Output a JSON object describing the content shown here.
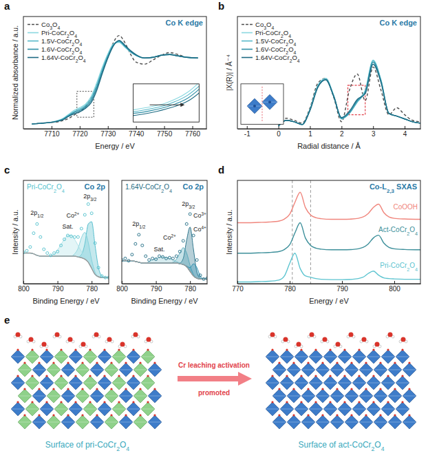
{
  "chart_data": [
    {
      "panel": "a",
      "type": "line",
      "annotation": "Co K edge",
      "x_label": "Energy / eV",
      "y_label": "Normalized absorbance / a.u.",
      "x": [
        7703,
        7706,
        7709,
        7712,
        7714,
        7716,
        7718,
        7720,
        7722,
        7724,
        7726,
        7728,
        7730,
        7732,
        7734,
        7736,
        7738,
        7740,
        7743,
        7746,
        7749,
        7752,
        7755,
        7758,
        7762
      ],
      "xlim": [
        7700,
        7765
      ],
      "xticks": [
        7710,
        7720,
        7730,
        7740,
        7750,
        7760
      ],
      "ylim": [
        -0.05,
        1.6
      ],
      "tick_labels": "x",
      "legend": "upper left",
      "inset": {
        "xlim": [
          7719,
          7725
        ],
        "ylim": [
          0.12,
          0.5
        ]
      },
      "series": [
        {
          "name": "Co3O4",
          "color": "#4d4d4d",
          "line_style": "dashed",
          "values": [
            0.02,
            0.03,
            0.04,
            0.05,
            0.07,
            0.1,
            0.15,
            0.2,
            0.28,
            0.4,
            0.58,
            0.8,
            1.0,
            1.22,
            1.32,
            1.22,
            1.05,
            0.93,
            0.9,
            0.96,
            1.03,
            1.07,
            1.04,
            1.0,
            0.99
          ]
        },
        {
          "name": "Pri-CoCr2O4",
          "color": "#8ad8e0",
          "line_style": "solid",
          "values": [
            0.02,
            0.03,
            0.04,
            0.07,
            0.1,
            0.16,
            0.22,
            0.26,
            0.31,
            0.42,
            0.62,
            0.85,
            1.05,
            1.2,
            1.22,
            1.15,
            1.08,
            1.03,
            0.99,
            1.0,
            1.03,
            1.04,
            1.02,
            1.0,
            0.99
          ]
        },
        {
          "name": "1.5V-CoCr2O4",
          "color": "#56b7c8",
          "line_style": "solid",
          "values": [
            0.02,
            0.03,
            0.04,
            0.06,
            0.09,
            0.15,
            0.2,
            0.24,
            0.29,
            0.39,
            0.58,
            0.82,
            1.03,
            1.19,
            1.23,
            1.16,
            1.08,
            1.03,
            0.99,
            1.0,
            1.03,
            1.04,
            1.02,
            1.0,
            0.99
          ]
        },
        {
          "name": "1.6V-CoCr2O4",
          "color": "#2f8fa6",
          "line_style": "solid",
          "values": [
            0.02,
            0.03,
            0.04,
            0.06,
            0.09,
            0.14,
            0.19,
            0.22,
            0.27,
            0.36,
            0.55,
            0.79,
            1.01,
            1.18,
            1.24,
            1.17,
            1.09,
            1.03,
            0.99,
            1.0,
            1.03,
            1.04,
            1.02,
            1.0,
            0.99
          ]
        },
        {
          "name": "1.64V-CoCr2O4",
          "color": "#1d6a82",
          "line_style": "solid",
          "values": [
            0.02,
            0.03,
            0.04,
            0.06,
            0.08,
            0.13,
            0.17,
            0.2,
            0.25,
            0.33,
            0.51,
            0.76,
            0.99,
            1.17,
            1.25,
            1.18,
            1.1,
            1.04,
            0.99,
            1.0,
            1.03,
            1.04,
            1.02,
            1.0,
            0.99
          ]
        }
      ]
    },
    {
      "panel": "b",
      "type": "line",
      "annotation": "Co K edge",
      "x_label": "Radial distance / Å",
      "y_label": "|X(R)| / Å⁻⁴",
      "x": [
        0,
        0.25,
        0.5,
        0.75,
        1,
        1.25,
        1.5,
        1.75,
        2,
        2.25,
        2.5,
        2.75,
        3,
        3.25,
        3.5,
        3.75,
        4,
        4.25,
        4.5
      ],
      "xlim": [
        -1.3,
        4.5
      ],
      "xticks": [
        -1,
        0,
        1,
        2,
        3,
        4
      ],
      "ylim": [
        0,
        1.6
      ],
      "tick_labels": "x",
      "legend": "upper left",
      "highlight": {
        "xlim": [
          2.2,
          2.75
        ],
        "ylim": [
          0.2,
          0.62
        ]
      },
      "series": [
        {
          "name": "Co3O4",
          "color": "#4d4d4d",
          "line_style": "dashed",
          "values": [
            0.05,
            0.15,
            0.12,
            0.08,
            0.3,
            0.65,
            0.72,
            0.45,
            0.1,
            0.55,
            0.78,
            0.4,
            0.88,
            0.55,
            0.2,
            0.3,
            0.2,
            0.12,
            0.1
          ]
        },
        {
          "name": "Pri-CoCr2O4",
          "color": "#8ad8e0",
          "line_style": "solid",
          "values": [
            0.04,
            0.12,
            0.1,
            0.06,
            0.28,
            0.62,
            0.72,
            0.48,
            0.15,
            0.22,
            0.4,
            0.55,
            0.98,
            0.7,
            0.22,
            0.18,
            0.14,
            0.1,
            0.08
          ]
        },
        {
          "name": "1.5V-CoCr2O4",
          "color": "#56b7c8",
          "line_style": "solid",
          "values": [
            0.04,
            0.12,
            0.1,
            0.06,
            0.27,
            0.61,
            0.71,
            0.47,
            0.14,
            0.22,
            0.38,
            0.53,
            0.97,
            0.69,
            0.22,
            0.18,
            0.14,
            0.1,
            0.08
          ]
        },
        {
          "name": "1.6V-CoCr2O4",
          "color": "#2f8fa6",
          "line_style": "solid",
          "values": [
            0.04,
            0.12,
            0.1,
            0.06,
            0.27,
            0.6,
            0.7,
            0.47,
            0.15,
            0.23,
            0.4,
            0.52,
            0.95,
            0.68,
            0.22,
            0.18,
            0.14,
            0.1,
            0.08
          ]
        },
        {
          "name": "1.64V-CoCr2O4",
          "color": "#1d6a82",
          "line_style": "solid",
          "values": [
            0.04,
            0.12,
            0.1,
            0.06,
            0.26,
            0.59,
            0.7,
            0.46,
            0.16,
            0.25,
            0.42,
            0.5,
            0.92,
            0.66,
            0.22,
            0.18,
            0.14,
            0.1,
            0.08
          ]
        }
      ]
    },
    {
      "panel": "c",
      "type": "line",
      "title": "Pri-CoCr2O4",
      "annotation": "Co 2p",
      "x_label": "Binding Energy / eV",
      "y_label": "Intensity / a.u.",
      "x": [
        800,
        799,
        798,
        797,
        796,
        795,
        794,
        793,
        792,
        791,
        790,
        789,
        788,
        787,
        786,
        785,
        784,
        783,
        782,
        781,
        780,
        779,
        778,
        777,
        776,
        775
      ],
      "xlim": [
        800,
        775
      ],
      "xticks": [
        800,
        790,
        780
      ],
      "ylim": [
        0,
        1.35
      ],
      "tick_labels": "x",
      "annotations": [
        "2p1/2",
        "Sat.",
        "2p3/2",
        "Co2+"
      ],
      "series": [
        {
          "type": "scatter",
          "marker": "circle-open",
          "color": "#4fbfcc",
          "values": [
            0.41,
            0.43,
            0.48,
            0.66,
            0.78,
            0.61,
            0.45,
            0.4,
            0.37,
            0.4,
            0.42,
            0.5,
            0.58,
            0.63,
            0.62,
            0.61,
            0.61,
            0.72,
            0.9,
            1.04,
            0.92,
            0.53,
            0.21,
            0.1,
            0.08,
            0.08
          ]
        },
        {
          "type": "line",
          "color": "#9a9a9a",
          "values": [
            0.4,
            0.4,
            0.4,
            0.39,
            0.37,
            0.36,
            0.36,
            0.36,
            0.36,
            0.36,
            0.36,
            0.36,
            0.36,
            0.36,
            0.36,
            0.36,
            0.35,
            0.34,
            0.32,
            0.28,
            0.2,
            0.12,
            0.09,
            0.08,
            0.08,
            0.08
          ]
        },
        {
          "type": "area",
          "color": "#46b8c8",
          "values": [
            0.4,
            0.4,
            0.4,
            0.39,
            0.37,
            0.36,
            0.36,
            0.36,
            0.36,
            0.36,
            0.36,
            0.36,
            0.36,
            0.36,
            0.36,
            0.36,
            0.35,
            0.38,
            0.52,
            0.78,
            0.81,
            0.5,
            0.21,
            0.1,
            0.08,
            0.08
          ]
        },
        {
          "type": "area",
          "color": "#7fcfda",
          "values": [
            0.4,
            0.4,
            0.4,
            0.39,
            0.37,
            0.36,
            0.36,
            0.36,
            0.36,
            0.36,
            0.36,
            0.36,
            0.36,
            0.36,
            0.36,
            0.39,
            0.46,
            0.6,
            0.67,
            0.54,
            0.31,
            0.15,
            0.09,
            0.08,
            0.08,
            0.08
          ]
        },
        {
          "type": "area",
          "color": "#a9dfe6",
          "values": [
            0.4,
            0.4,
            0.4,
            0.39,
            0.37,
            0.36,
            0.36,
            0.36,
            0.37,
            0.39,
            0.44,
            0.51,
            0.58,
            0.63,
            0.63,
            0.58,
            0.5,
            0.42,
            0.35,
            0.28,
            0.2,
            0.12,
            0.09,
            0.08,
            0.08,
            0.08
          ]
        }
      ]
    },
    {
      "type": "line",
      "title": "1.64V-CoCr2O4",
      "annotation": "Co 2p",
      "x_label": "Binding Energy / eV",
      "x": [
        800,
        799,
        798,
        797,
        796,
        795,
        794,
        793,
        792,
        791,
        790,
        789,
        788,
        787,
        786,
        785,
        784,
        783,
        782,
        781,
        780,
        779,
        778,
        777,
        776,
        775
      ],
      "xlim": [
        800,
        775
      ],
      "xticks": [
        800,
        790,
        780
      ],
      "ylim": [
        0,
        1.35
      ],
      "tick_labels": "x",
      "annotations": [
        "2p1/2",
        "Sat.",
        "2p3/2",
        "Co3+",
        "Co4+",
        "Co2+"
      ],
      "series": [
        {
          "type": "scatter",
          "marker": "circle-open",
          "color": "#1d6a82",
          "values": [
            0.31,
            0.33,
            0.3,
            0.38,
            0.52,
            0.64,
            0.5,
            0.36,
            0.31,
            0.33,
            0.32,
            0.36,
            0.35,
            0.33,
            0.34,
            0.33,
            0.36,
            0.42,
            0.56,
            0.78,
            0.91,
            0.63,
            0.31,
            0.11,
            0.06,
            0.07
          ]
        },
        {
          "type": "line",
          "color": "#9a9a9a",
          "values": [
            0.3,
            0.3,
            0.3,
            0.3,
            0.29,
            0.28,
            0.27,
            0.27,
            0.27,
            0.27,
            0.27,
            0.27,
            0.27,
            0.27,
            0.27,
            0.27,
            0.27,
            0.26,
            0.25,
            0.22,
            0.16,
            0.1,
            0.07,
            0.06,
            0.06,
            0.06
          ]
        },
        {
          "type": "area",
          "color": "#1d6a82",
          "values": [
            0.3,
            0.3,
            0.3,
            0.3,
            0.29,
            0.28,
            0.27,
            0.27,
            0.27,
            0.27,
            0.27,
            0.27,
            0.27,
            0.27,
            0.27,
            0.27,
            0.27,
            0.27,
            0.33,
            0.57,
            0.74,
            0.45,
            0.15,
            0.07,
            0.06,
            0.06
          ]
        },
        {
          "type": "area",
          "color": "#4fa6b8",
          "values": [
            0.3,
            0.3,
            0.3,
            0.3,
            0.29,
            0.28,
            0.27,
            0.27,
            0.27,
            0.27,
            0.27,
            0.27,
            0.27,
            0.27,
            0.27,
            0.28,
            0.32,
            0.4,
            0.47,
            0.4,
            0.24,
            0.12,
            0.07,
            0.06,
            0.06,
            0.06
          ]
        },
        {
          "type": "area",
          "color": "#2b8fb0",
          "values": [
            0.3,
            0.3,
            0.3,
            0.3,
            0.29,
            0.28,
            0.27,
            0.27,
            0.27,
            0.27,
            0.27,
            0.27,
            0.27,
            0.27,
            0.27,
            0.27,
            0.27,
            0.26,
            0.25,
            0.23,
            0.21,
            0.26,
            0.21,
            0.1,
            0.06,
            0.06
          ]
        },
        {
          "type": "area",
          "color": "#7fc0cc",
          "values": [
            0.3,
            0.3,
            0.3,
            0.3,
            0.29,
            0.28,
            0.27,
            0.27,
            0.29,
            0.31,
            0.33,
            0.34,
            0.35,
            0.34,
            0.33,
            0.31,
            0.29,
            0.27,
            0.25,
            0.22,
            0.16,
            0.1,
            0.07,
            0.06,
            0.06,
            0.06
          ]
        }
      ]
    },
    {
      "panel": "d",
      "type": "line",
      "annotation": "Co-L2,3 SXAS",
      "x_label": "Energy / eV",
      "y_label": "Intensity / a.u.",
      "x": [
        770,
        772,
        774,
        776,
        778,
        779,
        780,
        781,
        782,
        783,
        784,
        785,
        786,
        788,
        790,
        792,
        794,
        795,
        796,
        797,
        798,
        799,
        800,
        802,
        805
      ],
      "xlim": [
        770,
        805
      ],
      "xticks": [
        770,
        780,
        790,
        800
      ],
      "ylim": [
        -0.05,
        3.0
      ],
      "tick_labels": "x",
      "reference_lines": [
        780.5,
        784
      ],
      "series": [
        {
          "name": "CoOOH",
          "color": "#f0857c",
          "values": [
            1.75,
            1.75,
            1.76,
            1.77,
            1.8,
            1.86,
            2.0,
            2.35,
            2.65,
            2.2,
            1.98,
            1.9,
            1.87,
            1.85,
            1.85,
            1.86,
            1.92,
            2.02,
            2.2,
            2.3,
            2.05,
            1.92,
            1.88,
            1.86,
            1.85
          ]
        },
        {
          "name": "Act-CoCr2O4",
          "color": "#3c8f9a",
          "values": [
            0.85,
            0.85,
            0.86,
            0.87,
            0.9,
            0.96,
            1.1,
            1.45,
            1.75,
            1.3,
            1.08,
            1.0,
            0.97,
            0.95,
            0.95,
            0.96,
            1.02,
            1.12,
            1.3,
            1.38,
            1.15,
            1.02,
            0.98,
            0.96,
            0.95
          ]
        },
        {
          "name": "Pri-CoCr2O4",
          "color": "#5cc4d0",
          "values": [
            0.0,
            0.0,
            0.01,
            0.02,
            0.06,
            0.18,
            0.55,
            0.85,
            0.4,
            0.18,
            0.14,
            0.1,
            0.08,
            0.07,
            0.07,
            0.08,
            0.14,
            0.25,
            0.32,
            0.2,
            0.12,
            0.1,
            0.09,
            0.08,
            0.08
          ]
        }
      ]
    }
  ],
  "diagram": {
    "panel": "e",
    "arrow_text": "Cr leaching activation",
    "arrow_subtext": "promoted",
    "captions": [
      "Surface of pri-CoCr2O4",
      "Surface of act-CoCr2O4"
    ]
  }
}
